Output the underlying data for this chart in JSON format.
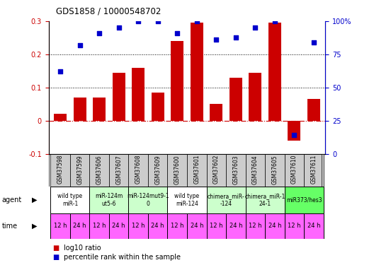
{
  "title": "GDS1858 / 10000548702",
  "samples": [
    "GSM37598",
    "GSM37599",
    "GSM37606",
    "GSM37607",
    "GSM37608",
    "GSM37609",
    "GSM37600",
    "GSM37601",
    "GSM37602",
    "GSM37603",
    "GSM37604",
    "GSM37605",
    "GSM37610",
    "GSM37611"
  ],
  "log10_ratio": [
    0.02,
    0.07,
    0.07,
    0.145,
    0.16,
    0.085,
    0.24,
    0.295,
    0.05,
    0.13,
    0.145,
    0.295,
    -0.06,
    0.065
  ],
  "percentile_rank": [
    62,
    82,
    91,
    95,
    100,
    100,
    91,
    100,
    86,
    88,
    95,
    100,
    14,
    84
  ],
  "ylim_left": [
    -0.1,
    0.3
  ],
  "ylim_right": [
    0,
    100
  ],
  "bar_color": "#cc0000",
  "dot_color": "#0000cc",
  "agent_groups": [
    {
      "label": "wild type\nmiR-1",
      "cols": [
        0,
        1
      ],
      "color": "#ffffff"
    },
    {
      "label": "miR-124m\nut5-6",
      "cols": [
        2,
        3
      ],
      "color": "#ccffcc"
    },
    {
      "label": "miR-124mut9-1\n0",
      "cols": [
        4,
        5
      ],
      "color": "#ccffcc"
    },
    {
      "label": "wild type\nmiR-124",
      "cols": [
        6,
        7
      ],
      "color": "#ffffff"
    },
    {
      "label": "chimera_miR-\n-124",
      "cols": [
        8,
        9
      ],
      "color": "#ccffcc"
    },
    {
      "label": "chimera_miR-1\n24-1",
      "cols": [
        10,
        11
      ],
      "color": "#ccffcc"
    },
    {
      "label": "miR373/hes3",
      "cols": [
        12,
        13
      ],
      "color": "#66ff66"
    }
  ],
  "time_labels": [
    "12 h",
    "24 h",
    "12 h",
    "24 h",
    "12 h",
    "24 h",
    "12 h",
    "24 h",
    "12 h",
    "24 h",
    "12 h",
    "24 h",
    "12 h",
    "24 h"
  ],
  "time_color": "#ff66ff",
  "sample_bg_color": "#cccccc",
  "dotted_lines": [
    0.1,
    0.2
  ],
  "zero_line_color": "#cc0000",
  "left_yticks": [
    -0.1,
    0.0,
    0.1,
    0.2,
    0.3
  ],
  "left_yticklabels": [
    "-0.1",
    "0",
    "0.1",
    "0.2",
    "0.3"
  ],
  "right_yticks": [
    0,
    25,
    50,
    75,
    100
  ],
  "right_yticklabels": [
    "0",
    "25",
    "50",
    "75",
    "100%"
  ],
  "legend_red_label": "log10 ratio",
  "legend_blue_label": "percentile rank within the sample",
  "agent_label": "agent",
  "time_label": "time"
}
